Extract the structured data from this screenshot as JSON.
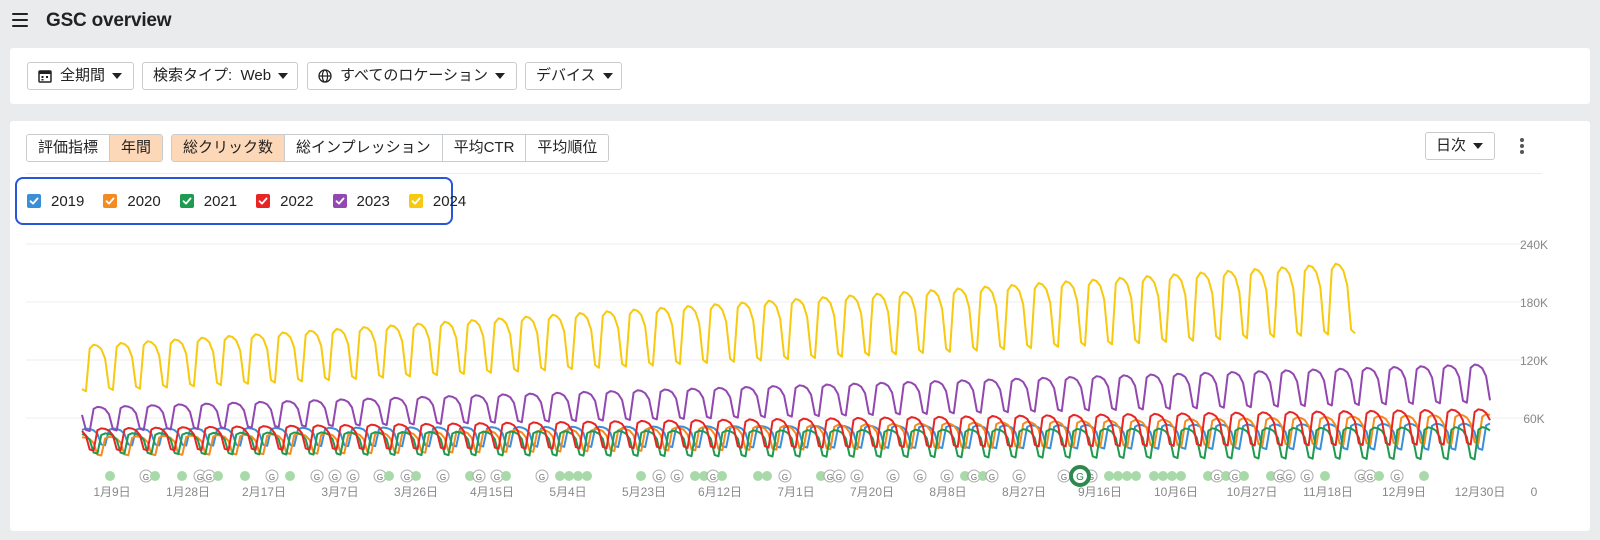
{
  "header": {
    "title": "GSC overview",
    "menu_icon": "hamburger-icon"
  },
  "filters": {
    "period": {
      "label": "全期間",
      "icon": "calendar-icon"
    },
    "search_type": {
      "label": "検索タイプ:  Web"
    },
    "location": {
      "label": "すべてのロケーション",
      "icon": "globe-icon"
    },
    "device": {
      "label": "デバイス"
    }
  },
  "chart_controls": {
    "mode_tabs": [
      {
        "label": "評価指標",
        "active": false
      },
      {
        "label": "年間",
        "active": true
      }
    ],
    "metric_tabs": [
      {
        "label": "総クリック数",
        "active": true
      },
      {
        "label": "総インプレッション",
        "active": false
      },
      {
        "label": "平均CTR",
        "active": false
      },
      {
        "label": "平均順位",
        "active": false
      }
    ],
    "interval": {
      "label": "日次"
    },
    "more_icon": "kebab-icon"
  },
  "legend": [
    {
      "label": "2019",
      "color": "#3a8fd9",
      "checked": true
    },
    {
      "label": "2020",
      "color": "#f58a1f",
      "checked": true
    },
    {
      "label": "2021",
      "color": "#1e9b4e",
      "checked": true
    },
    {
      "label": "2022",
      "color": "#e82525",
      "checked": true
    },
    {
      "label": "2023",
      "color": "#9347b0",
      "checked": true
    },
    {
      "label": "2024",
      "color": "#f7c90f",
      "checked": true
    }
  ],
  "chart_data": {
    "type": "line",
    "x_ticks": [
      "1月9日",
      "1月28日",
      "2月17日",
      "3月7日",
      "3月26日",
      "4月15日",
      "5月4日",
      "5月23日",
      "6月12日",
      "7月1日",
      "7月20日",
      "8月8日",
      "8月27日",
      "9月16日",
      "10月6日",
      "10月27日",
      "11月18日",
      "12月9日",
      "12月30日"
    ],
    "y_ticks": [
      "0",
      "60K",
      "120K",
      "180K",
      "240K"
    ],
    "ylim": [
      0,
      240000
    ],
    "grid": true,
    "series": [
      {
        "name": "2019",
        "color": "#3a8fd9",
        "base": 40000,
        "amp": 9000,
        "trend_end": 40000,
        "end_day": 365
      },
      {
        "name": "2020",
        "color": "#f58a1f",
        "base": 30000,
        "amp": 10000,
        "trend_end": 48000,
        "end_day": 365
      },
      {
        "name": "2021",
        "color": "#1e9b4e",
        "base": 33000,
        "amp": 11000,
        "trend_end": 33000,
        "end_day": 365
      },
      {
        "name": "2022",
        "color": "#e82525",
        "base": 37000,
        "amp": 12000,
        "trend_end": 50000,
        "end_day": 365
      },
      {
        "name": "2023",
        "color": "#9347b0",
        "base": 58000,
        "amp": 13000,
        "trend_end": 95000,
        "end_day": 365
      },
      {
        "name": "2024",
        "color": "#f7c90f",
        "base": 110000,
        "amp": 25000,
        "trend_end": 190000,
        "end_day": 330
      }
    ],
    "annotation_marker": "G"
  }
}
